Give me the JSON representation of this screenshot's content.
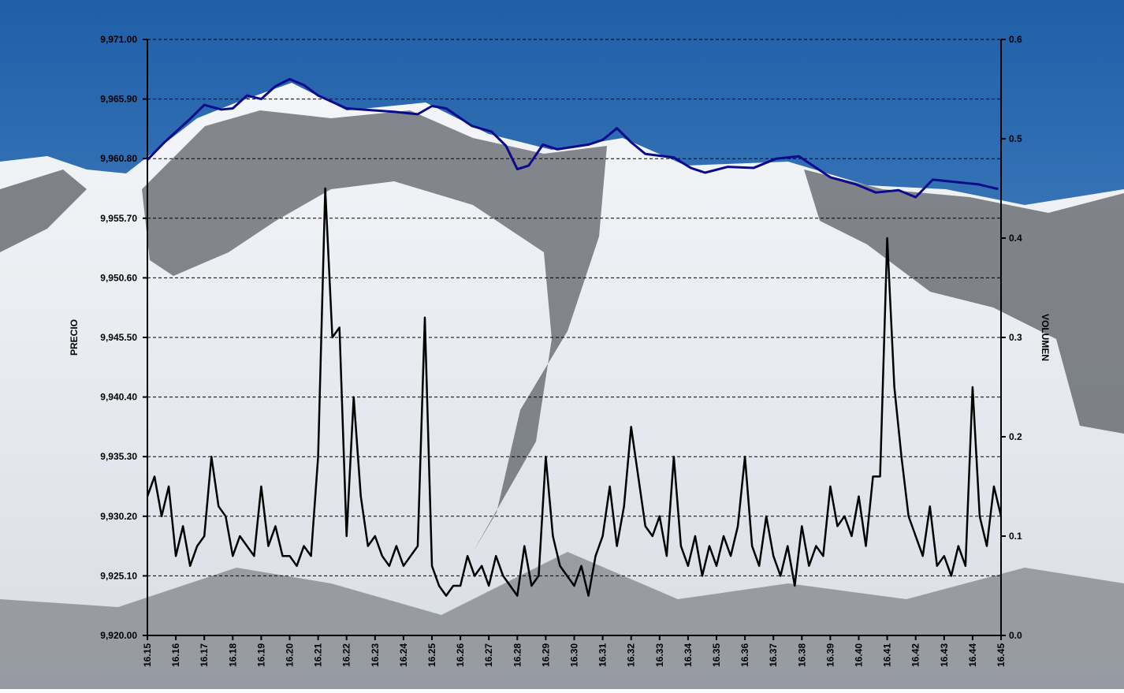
{
  "chart_data": {
    "type": "line",
    "y_label": "PRECIO",
    "y2_label": "VOLUMEN",
    "xlim": [
      16.15,
      16.45
    ],
    "xticks": [
      16.15,
      16.16,
      16.17,
      16.18,
      16.19,
      {
        "value": 16.2,
        "label": "16.20"
      },
      16.21,
      16.22,
      16.23,
      16.24,
      16.25,
      16.26,
      16.27,
      16.28,
      16.29,
      {
        "value": 16.3,
        "label": "16.30"
      },
      16.31,
      16.32,
      16.33,
      16.34,
      16.35,
      16.36,
      16.37,
      16.38,
      16.39,
      {
        "value": 16.4,
        "label": "16.40"
      },
      16.41,
      16.42,
      16.43,
      16.44,
      16.45
    ],
    "ylim": [
      9920,
      9971
    ],
    "yticks": [
      {
        "value": 9920,
        "label": "9,920.00"
      },
      {
        "value": 9925.1,
        "label": "9,925.10"
      },
      {
        "value": 9930.2,
        "label": "9,930.20"
      },
      {
        "value": 9935.3,
        "label": "9,935.30"
      },
      {
        "value": 9940.4,
        "label": "9,940.40"
      },
      {
        "value": 9945.5,
        "label": "9,945.50"
      },
      {
        "value": 9950.6,
        "label": "9,950.60"
      },
      {
        "value": 9955.7,
        "label": "9,955.70"
      },
      {
        "value": 9960.8,
        "label": "9,960.80"
      },
      {
        "value": 9965.9,
        "label": "9,965.90"
      },
      {
        "value": 9971,
        "label": "9,971.00"
      }
    ],
    "y2lim": [
      0,
      0.6
    ],
    "y2ticks": [
      {
        "value": 0,
        "label": "0.0"
      },
      0.1,
      0.2,
      0.3,
      0.4,
      0.5,
      0.6
    ],
    "grid": true,
    "series": [
      {
        "color": "#0a0a8c",
        "x": [
          16.15,
          16.156,
          16.165,
          16.17,
          16.176,
          16.18,
          16.185,
          16.19,
          16.195,
          16.2,
          16.205,
          16.21,
          16.22,
          16.237,
          16.245,
          16.25,
          16.255,
          16.264,
          16.271,
          16.276,
          16.28,
          16.284,
          16.289,
          16.294,
          16.305,
          16.31,
          16.315,
          16.32,
          16.325,
          16.335,
          16.341,
          16.346,
          16.354,
          16.363,
          16.371,
          16.379,
          16.39,
          16.399,
          16.406,
          16.414,
          16.42,
          16.426,
          16.442,
          16.449
        ],
        "values": [
          9960.7,
          9962.2,
          9964.2,
          9965.4,
          9965.0,
          9965.1,
          9966.2,
          9965.9,
          9967.0,
          9967.6,
          9967.1,
          9966.2,
          9965.1,
          9964.8,
          9964.6,
          9965.3,
          9965.1,
          9963.6,
          9963.1,
          9961.9,
          9959.9,
          9960.2,
          9962.0,
          9961.6,
          9962.0,
          9962.4,
          9963.4,
          9962.2,
          9961.2,
          9960.9,
          9960.0,
          9959.6,
          9960.1,
          9960.0,
          9960.8,
          9961.0,
          9959.2,
          9958.6,
          9957.9,
          9958.1,
          9957.5,
          9959.0,
          9958.6,
          9958.2
        ]
      },
      {
        "color": "#000000",
        "axis": "y2",
        "x": [
          16.15,
          16.1525,
          16.155,
          16.1575,
          16.16,
          16.1625,
          16.165,
          16.1675,
          16.17,
          16.1725,
          16.175,
          16.1775,
          16.18,
          16.1825,
          16.185,
          16.1875,
          16.19,
          16.1925,
          16.195,
          16.1975,
          16.2,
          16.2025,
          16.205,
          16.2075,
          16.21,
          16.2125,
          16.215,
          16.2175,
          16.22,
          16.2225,
          16.225,
          16.2275,
          16.23,
          16.2325,
          16.235,
          16.2375,
          16.24,
          16.2425,
          16.245,
          16.2475,
          16.25,
          16.2525,
          16.255,
          16.2575,
          16.26,
          16.2625,
          16.265,
          16.2675,
          16.27,
          16.2725,
          16.275,
          16.2775,
          16.28,
          16.2825,
          16.285,
          16.2875,
          16.29,
          16.2925,
          16.295,
          16.2975,
          16.3,
          16.3025,
          16.305,
          16.3075,
          16.31,
          16.3125,
          16.315,
          16.3175,
          16.32,
          16.3225,
          16.325,
          16.3275,
          16.33,
          16.3325,
          16.335,
          16.3375,
          16.34,
          16.3425,
          16.345,
          16.3475,
          16.35,
          16.3525,
          16.355,
          16.3575,
          16.36,
          16.3625,
          16.365,
          16.3675,
          16.37,
          16.3725,
          16.375,
          16.3775,
          16.38,
          16.3825,
          16.385,
          16.3875,
          16.39,
          16.3925,
          16.395,
          16.3975,
          16.4,
          16.4025,
          16.405,
          16.4075,
          16.41,
          16.4125,
          16.415,
          16.4175,
          16.42,
          16.4225,
          16.425,
          16.4275,
          16.43,
          16.4325,
          16.435,
          16.4375,
          16.44,
          16.4425,
          16.445,
          16.4475,
          16.45
        ],
        "values": [
          0.14,
          0.16,
          0.12,
          0.15,
          0.08,
          0.11,
          0.07,
          0.09,
          0.1,
          0.18,
          0.13,
          0.12,
          0.08,
          0.1,
          0.09,
          0.08,
          0.15,
          0.09,
          0.11,
          0.08,
          0.08,
          0.07,
          0.09,
          0.08,
          0.18,
          0.45,
          0.3,
          0.31,
          0.1,
          0.24,
          0.14,
          0.09,
          0.1,
          0.08,
          0.07,
          0.09,
          0.07,
          0.08,
          0.09,
          0.32,
          0.07,
          0.05,
          0.04,
          0.05,
          0.05,
          0.08,
          0.06,
          0.07,
          0.05,
          0.08,
          0.06,
          0.05,
          0.04,
          0.09,
          0.05,
          0.06,
          0.18,
          0.1,
          0.07,
          0.06,
          0.05,
          0.07,
          0.04,
          0.08,
          0.1,
          0.15,
          0.09,
          0.13,
          0.21,
          0.16,
          0.11,
          0.1,
          0.12,
          0.08,
          0.18,
          0.09,
          0.07,
          0.1,
          0.06,
          0.09,
          0.07,
          0.1,
          0.08,
          0.11,
          0.18,
          0.09,
          0.07,
          0.12,
          0.08,
          0.06,
          0.09,
          0.05,
          0.11,
          0.07,
          0.09,
          0.08,
          0.15,
          0.11,
          0.12,
          0.1,
          0.14,
          0.09,
          0.16,
          0.16,
          0.4,
          0.25,
          0.18,
          0.12,
          0.1,
          0.08,
          0.13,
          0.07,
          0.08,
          0.06,
          0.09,
          0.07,
          0.25,
          0.12,
          0.09,
          0.15,
          0.12
        ]
      }
    ]
  }
}
